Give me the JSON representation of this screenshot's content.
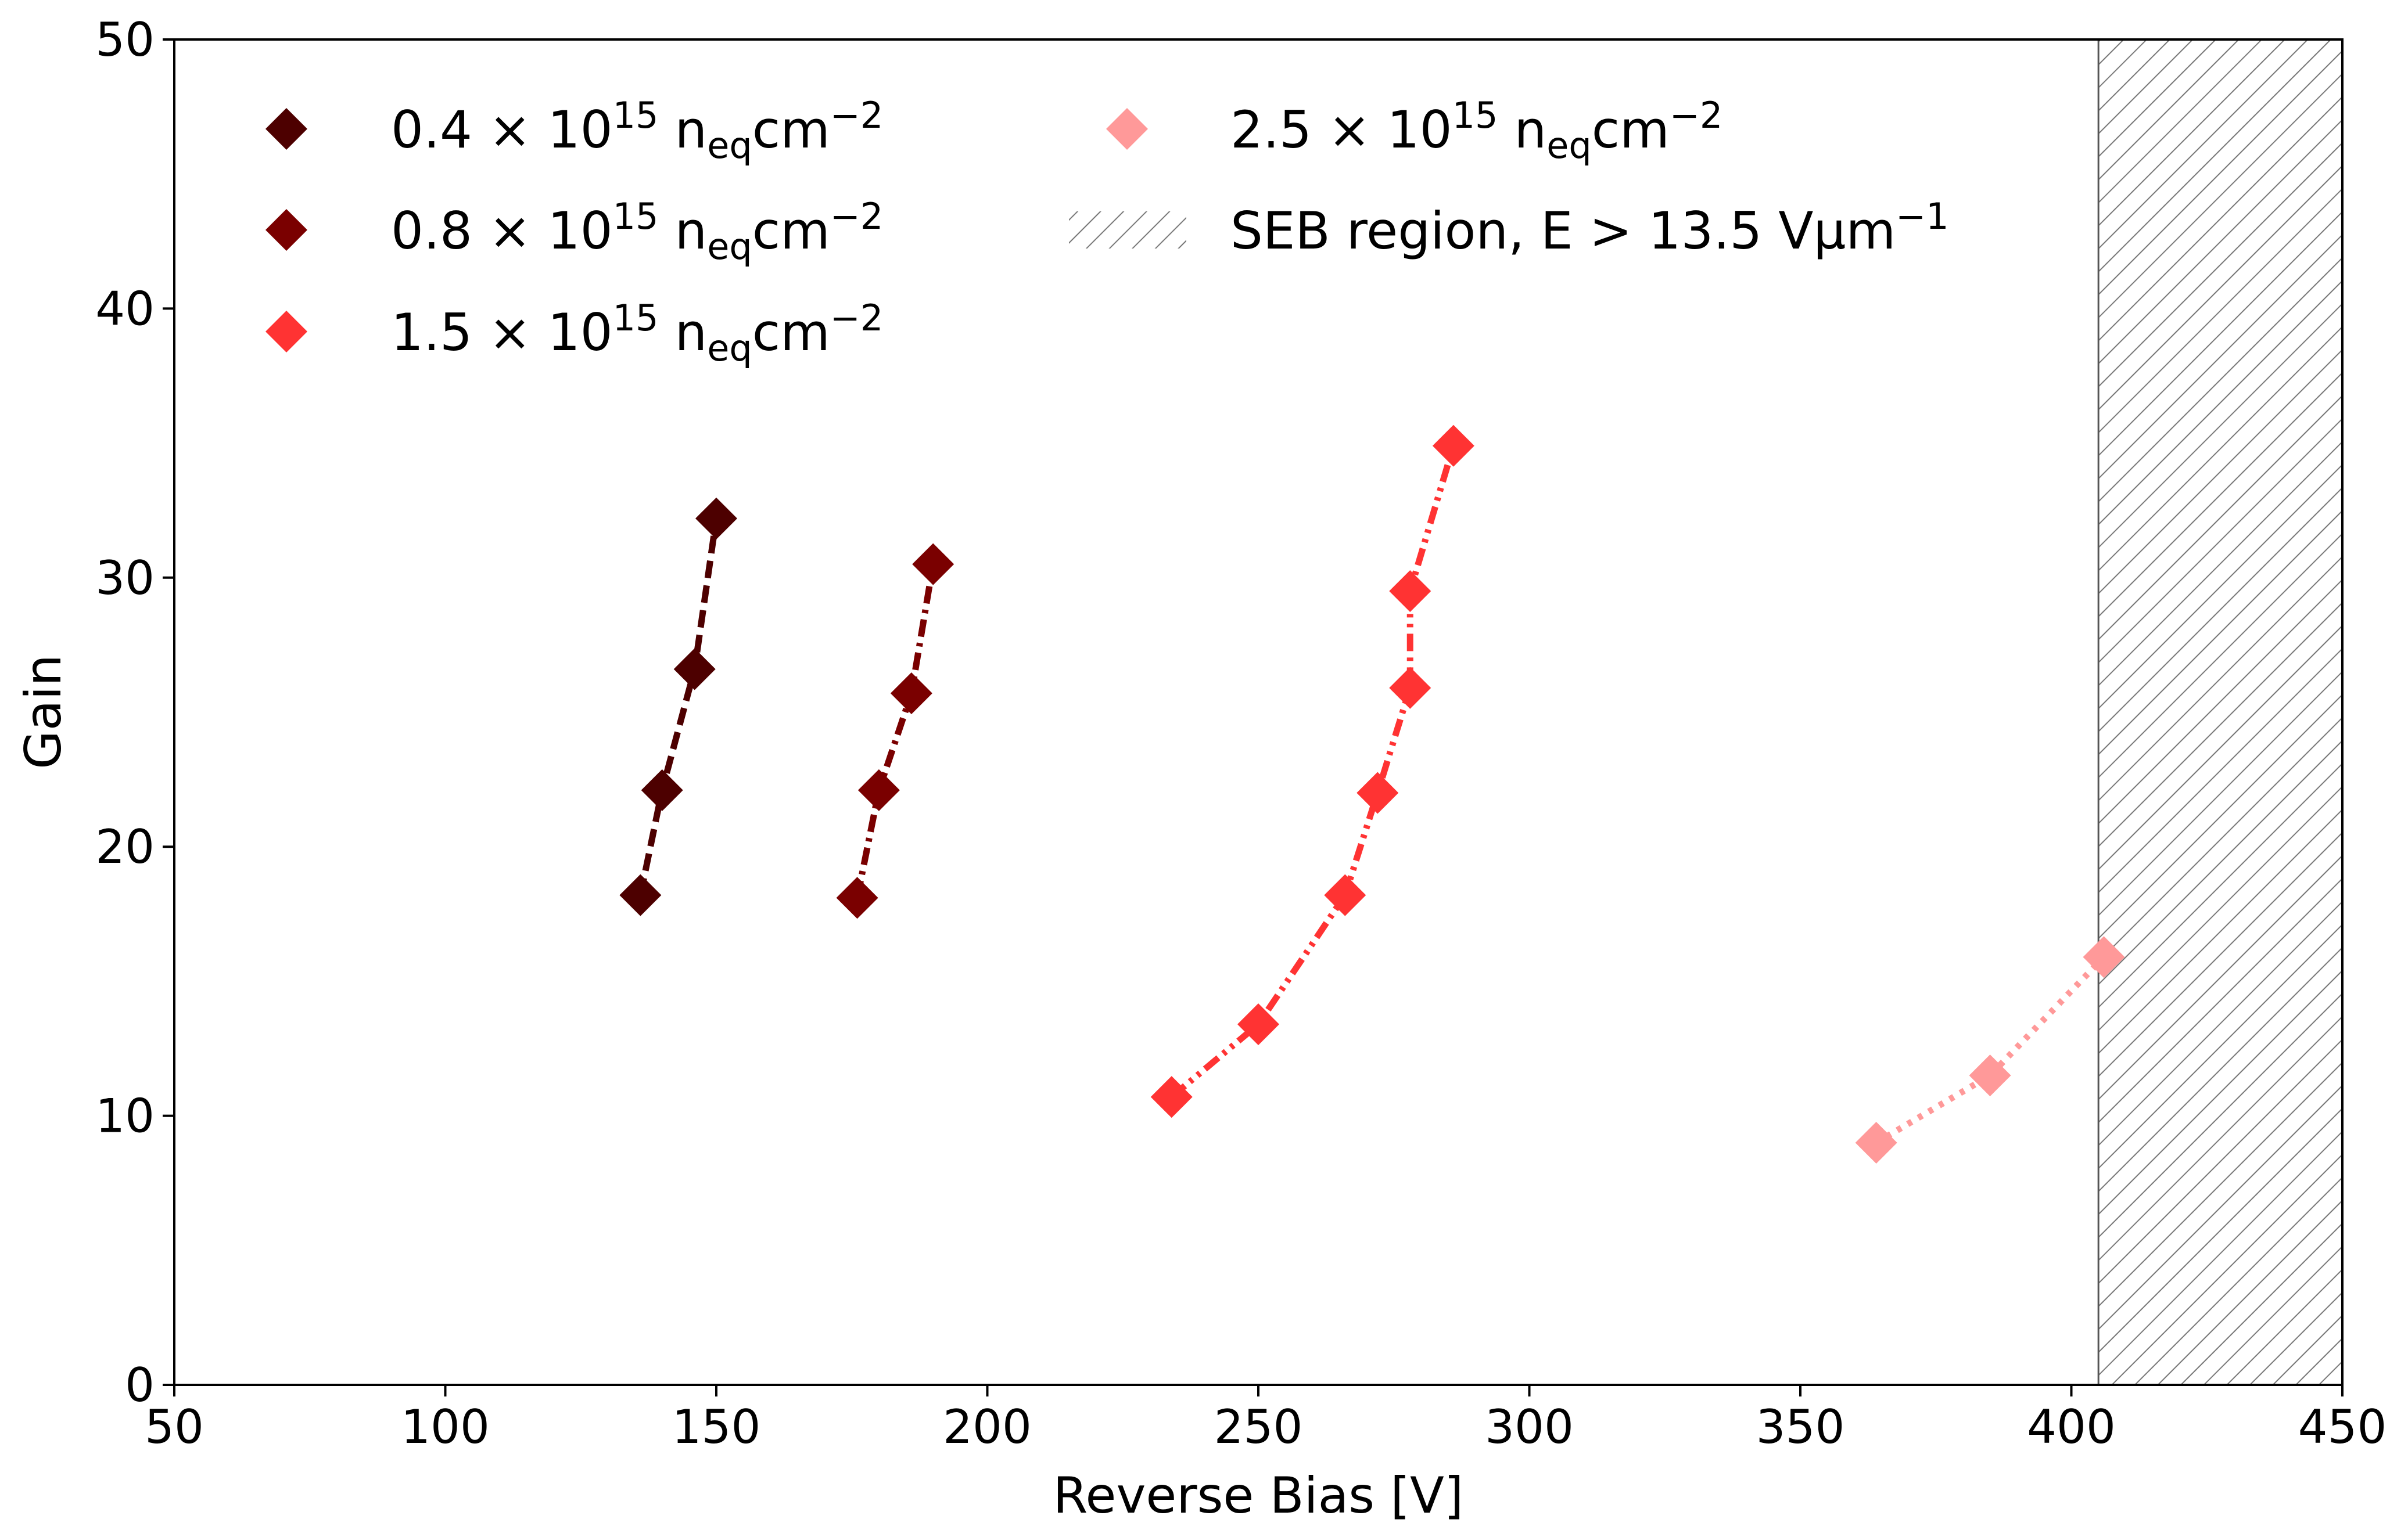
{
  "chart_data": {
    "type": "line",
    "title": "",
    "xlabel": "Reverse Bias [V]",
    "ylabel": "Gain",
    "xlim": [
      50,
      450
    ],
    "ylim": [
      0,
      50
    ],
    "xticks": [
      "50",
      "100",
      "150",
      "200",
      "250",
      "300",
      "350",
      "400",
      "450"
    ],
    "yticks": [
      "0",
      "10",
      "20",
      "30",
      "40",
      "50"
    ],
    "xtick_values": [
      50,
      100,
      150,
      200,
      250,
      300,
      350,
      400,
      450
    ],
    "ytick_values": [
      0,
      10,
      20,
      30,
      40,
      50
    ],
    "grid": false,
    "legend_position": "top-left",
    "series": [
      {
        "name": "0.4 × 10^15 n_eq cm^-2",
        "label": {
          "base": "0.4 × 10",
          "sup": "15",
          "unit": " n",
          "sub": "eq",
          "unit2": "cm",
          "sup2": "−2"
        },
        "color": "#4d0000",
        "line_style": "dashed",
        "marker": "diamond",
        "x": [
          136,
          140,
          146,
          150
        ],
        "y": [
          18.2,
          22.1,
          26.6,
          32.2
        ]
      },
      {
        "name": "0.8 × 10^15 n_eq cm^-2",
        "label": {
          "base": "0.8 × 10",
          "sup": "15",
          "unit": " n",
          "sub": "eq",
          "unit2": "cm",
          "sup2": "−2"
        },
        "color": "#7a0000",
        "line_style": "dashdot",
        "marker": "diamond",
        "x": [
          176,
          180,
          186,
          190
        ],
        "y": [
          18.1,
          22.1,
          25.7,
          30.5
        ]
      },
      {
        "name": "1.5 × 10^15 n_eq cm^-2",
        "label": {
          "base": "1.5 × 10",
          "sup": "15",
          "unit": " n",
          "sub": "eq",
          "unit2": "cm",
          "sup2": "−2"
        },
        "color": "#ff3333",
        "line_style": "dashdotdot",
        "marker": "diamond",
        "x": [
          234,
          250,
          266,
          272,
          278,
          278,
          286
        ],
        "y": [
          10.7,
          13.4,
          18.2,
          22.0,
          25.9,
          29.5,
          34.9
        ]
      },
      {
        "name": "2.5 × 10^15 n_eq cm^-2",
        "label": {
          "base": "2.5 × 10",
          "sup": "15",
          "unit": " n",
          "sub": "eq",
          "unit2": "cm",
          "sup2": "−2"
        },
        "color": "#ff9999",
        "line_style": "dotted",
        "marker": "diamond",
        "x": [
          364,
          385,
          406
        ],
        "y": [
          9.0,
          11.5,
          15.9
        ]
      }
    ],
    "shaded_region": {
      "label": {
        "base": "SEB region, E > 13.5 Vμm",
        "sup": "−1"
      },
      "x_range": [
        405,
        450
      ],
      "pattern": "hatch",
      "color": "#666666"
    }
  }
}
